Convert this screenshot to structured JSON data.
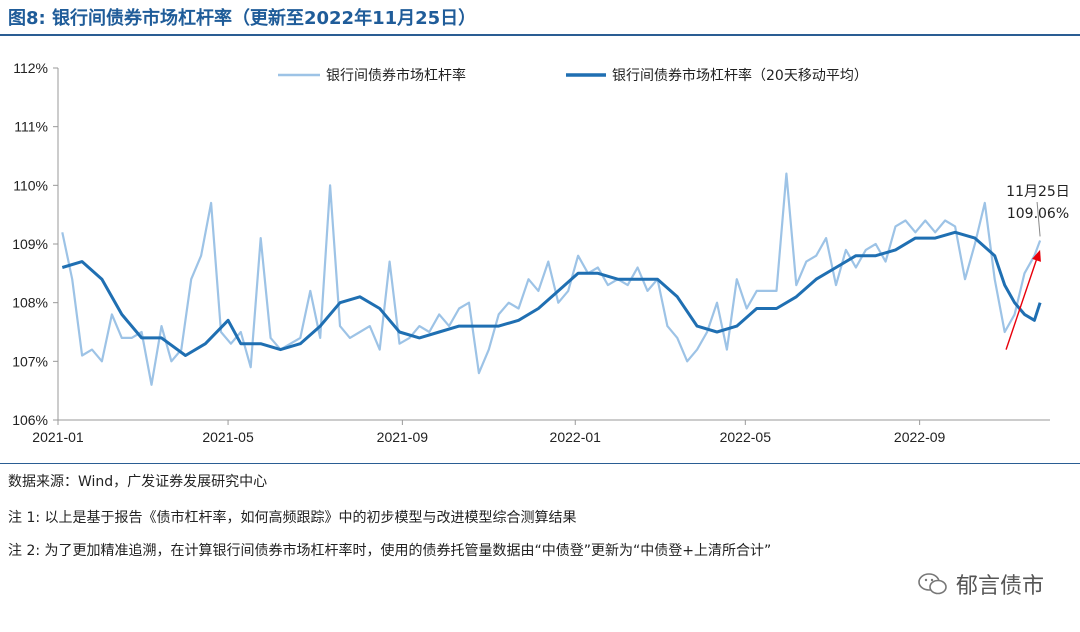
{
  "title": "图8:  银行间债券市场杠杆率（更新至2022年11月25日）",
  "notes": [
    "数据来源：Wind，广发证券发展研究中心",
    "注 1:  以上是基于报告《债市杠杆率，如何高频跟踪》中的初步模型与改进模型综合测算结果",
    "注 2:  为了更加精准追溯，在计算银行间债券市场杠杆率时，使用的债券托管量数据由“中债登”更新为“中债登+上清所合计”"
  ],
  "brand": "郁言债市",
  "colors": {
    "daily": "#9dc3e6",
    "ma20": "#1f6fb2",
    "arrow": "#e8000b",
    "title": "#1f5c99"
  },
  "chart_data": {
    "type": "line",
    "x_start": "2021-01-01",
    "x_end": "2022-11-25",
    "xticks": [
      "2021-01",
      "2021-05",
      "2021-09",
      "2022-01",
      "2022-05",
      "2022-09"
    ],
    "ylim": [
      106,
      112
    ],
    "yticks": [
      "106%",
      "107%",
      "108%",
      "109%",
      "110%",
      "111%",
      "112%"
    ],
    "legend_position": "top",
    "series": [
      {
        "name": "银行间债券市场杠杆率",
        "style": "thin-light",
        "points": [
          [
            "2021-01-04",
            109.2
          ],
          [
            "2021-01-11",
            108.4
          ],
          [
            "2021-01-18",
            107.1
          ],
          [
            "2021-01-25",
            107.2
          ],
          [
            "2021-02-01",
            107.0
          ],
          [
            "2021-02-08",
            107.8
          ],
          [
            "2021-02-15",
            107.4
          ],
          [
            "2021-02-22",
            107.4
          ],
          [
            "2021-03-01",
            107.5
          ],
          [
            "2021-03-08",
            106.6
          ],
          [
            "2021-03-15",
            107.6
          ],
          [
            "2021-03-22",
            107.0
          ],
          [
            "2021-03-29",
            107.2
          ],
          [
            "2021-04-05",
            108.4
          ],
          [
            "2021-04-12",
            108.8
          ],
          [
            "2021-04-19",
            109.7
          ],
          [
            "2021-04-26",
            107.5
          ],
          [
            "2021-05-03",
            107.3
          ],
          [
            "2021-05-10",
            107.5
          ],
          [
            "2021-05-17",
            106.9
          ],
          [
            "2021-05-24",
            109.1
          ],
          [
            "2021-05-31",
            107.4
          ],
          [
            "2021-06-07",
            107.2
          ],
          [
            "2021-06-14",
            107.3
          ],
          [
            "2021-06-21",
            107.4
          ],
          [
            "2021-06-28",
            108.2
          ],
          [
            "2021-07-05",
            107.4
          ],
          [
            "2021-07-12",
            110.0
          ],
          [
            "2021-07-19",
            107.6
          ],
          [
            "2021-07-26",
            107.4
          ],
          [
            "2021-08-02",
            107.5
          ],
          [
            "2021-08-09",
            107.6
          ],
          [
            "2021-08-16",
            107.2
          ],
          [
            "2021-08-23",
            108.7
          ],
          [
            "2021-08-30",
            107.3
          ],
          [
            "2021-09-06",
            107.4
          ],
          [
            "2021-09-13",
            107.6
          ],
          [
            "2021-09-20",
            107.5
          ],
          [
            "2021-09-27",
            107.8
          ],
          [
            "2021-10-04",
            107.6
          ],
          [
            "2021-10-11",
            107.9
          ],
          [
            "2021-10-18",
            108.0
          ],
          [
            "2021-10-25",
            106.8
          ],
          [
            "2021-11-01",
            107.2
          ],
          [
            "2021-11-08",
            107.8
          ],
          [
            "2021-11-15",
            108.0
          ],
          [
            "2021-11-22",
            107.9
          ],
          [
            "2021-11-29",
            108.4
          ],
          [
            "2021-12-06",
            108.2
          ],
          [
            "2021-12-13",
            108.7
          ],
          [
            "2021-12-20",
            108.0
          ],
          [
            "2021-12-27",
            108.2
          ],
          [
            "2022-01-03",
            108.8
          ],
          [
            "2022-01-10",
            108.5
          ],
          [
            "2022-01-17",
            108.6
          ],
          [
            "2022-01-24",
            108.3
          ],
          [
            "2022-01-31",
            108.4
          ],
          [
            "2022-02-07",
            108.3
          ],
          [
            "2022-02-14",
            108.6
          ],
          [
            "2022-02-21",
            108.2
          ],
          [
            "2022-02-28",
            108.4
          ],
          [
            "2022-03-07",
            107.6
          ],
          [
            "2022-03-14",
            107.4
          ],
          [
            "2022-03-21",
            107.0
          ],
          [
            "2022-03-28",
            107.2
          ],
          [
            "2022-04-04",
            107.5
          ],
          [
            "2022-04-11",
            108.0
          ],
          [
            "2022-04-18",
            107.2
          ],
          [
            "2022-04-25",
            108.4
          ],
          [
            "2022-05-02",
            107.9
          ],
          [
            "2022-05-09",
            108.2
          ],
          [
            "2022-05-16",
            108.2
          ],
          [
            "2022-05-23",
            108.2
          ],
          [
            "2022-05-30",
            110.2
          ],
          [
            "2022-06-06",
            108.3
          ],
          [
            "2022-06-13",
            108.7
          ],
          [
            "2022-06-20",
            108.8
          ],
          [
            "2022-06-27",
            109.1
          ],
          [
            "2022-07-04",
            108.3
          ],
          [
            "2022-07-11",
            108.9
          ],
          [
            "2022-07-18",
            108.6
          ],
          [
            "2022-07-25",
            108.9
          ],
          [
            "2022-08-01",
            109.0
          ],
          [
            "2022-08-08",
            108.7
          ],
          [
            "2022-08-15",
            109.3
          ],
          [
            "2022-08-22",
            109.4
          ],
          [
            "2022-08-29",
            109.2
          ],
          [
            "2022-09-05",
            109.4
          ],
          [
            "2022-09-12",
            109.2
          ],
          [
            "2022-09-19",
            109.4
          ],
          [
            "2022-09-26",
            109.3
          ],
          [
            "2022-10-03",
            108.4
          ],
          [
            "2022-10-10",
            109.0
          ],
          [
            "2022-10-17",
            109.7
          ],
          [
            "2022-10-24",
            108.4
          ],
          [
            "2022-10-31",
            107.5
          ],
          [
            "2022-11-07",
            107.8
          ],
          [
            "2022-11-14",
            108.5
          ],
          [
            "2022-11-21",
            108.8
          ],
          [
            "2022-11-25",
            109.06
          ]
        ]
      },
      {
        "name": "银行间债券市场杠杆率（20天移动平均）",
        "style": "thick-dark",
        "points": [
          [
            "2021-01-04",
            108.6
          ],
          [
            "2021-01-18",
            108.7
          ],
          [
            "2021-02-01",
            108.4
          ],
          [
            "2021-02-15",
            107.8
          ],
          [
            "2021-03-01",
            107.4
          ],
          [
            "2021-03-15",
            107.4
          ],
          [
            "2021-04-01",
            107.1
          ],
          [
            "2021-04-15",
            107.3
          ],
          [
            "2021-05-01",
            107.7
          ],
          [
            "2021-05-10",
            107.3
          ],
          [
            "2021-05-24",
            107.3
          ],
          [
            "2021-06-07",
            107.2
          ],
          [
            "2021-06-21",
            107.3
          ],
          [
            "2021-07-05",
            107.6
          ],
          [
            "2021-07-19",
            108.0
          ],
          [
            "2021-08-02",
            108.1
          ],
          [
            "2021-08-16",
            107.9
          ],
          [
            "2021-08-30",
            107.5
          ],
          [
            "2021-09-13",
            107.4
          ],
          [
            "2021-09-27",
            107.5
          ],
          [
            "2021-10-11",
            107.6
          ],
          [
            "2021-10-25",
            107.6
          ],
          [
            "2021-11-08",
            107.6
          ],
          [
            "2021-11-22",
            107.7
          ],
          [
            "2021-12-06",
            107.9
          ],
          [
            "2021-12-20",
            108.2
          ],
          [
            "2022-01-03",
            108.5
          ],
          [
            "2022-01-17",
            108.5
          ],
          [
            "2022-01-31",
            108.4
          ],
          [
            "2022-02-14",
            108.4
          ],
          [
            "2022-02-28",
            108.4
          ],
          [
            "2022-03-14",
            108.1
          ],
          [
            "2022-03-28",
            107.6
          ],
          [
            "2022-04-11",
            107.5
          ],
          [
            "2022-04-25",
            107.6
          ],
          [
            "2022-05-09",
            107.9
          ],
          [
            "2022-05-23",
            107.9
          ],
          [
            "2022-06-06",
            108.1
          ],
          [
            "2022-06-20",
            108.4
          ],
          [
            "2022-07-04",
            108.6
          ],
          [
            "2022-07-18",
            108.8
          ],
          [
            "2022-08-01",
            108.8
          ],
          [
            "2022-08-15",
            108.9
          ],
          [
            "2022-08-29",
            109.1
          ],
          [
            "2022-09-12",
            109.1
          ],
          [
            "2022-09-26",
            109.2
          ],
          [
            "2022-10-10",
            109.1
          ],
          [
            "2022-10-24",
            108.8
          ],
          [
            "2022-10-31",
            108.3
          ],
          [
            "2022-11-07",
            108.0
          ],
          [
            "2022-11-14",
            107.8
          ],
          [
            "2022-11-21",
            107.7
          ],
          [
            "2022-11-25",
            108.0
          ]
        ]
      }
    ],
    "annotation": {
      "date_label": "11月25日",
      "value_label": "109.06%"
    },
    "arrow_from": [
      "2022-11-01",
      107.2
    ],
    "arrow_to": [
      "2022-11-25",
      108.9
    ]
  }
}
